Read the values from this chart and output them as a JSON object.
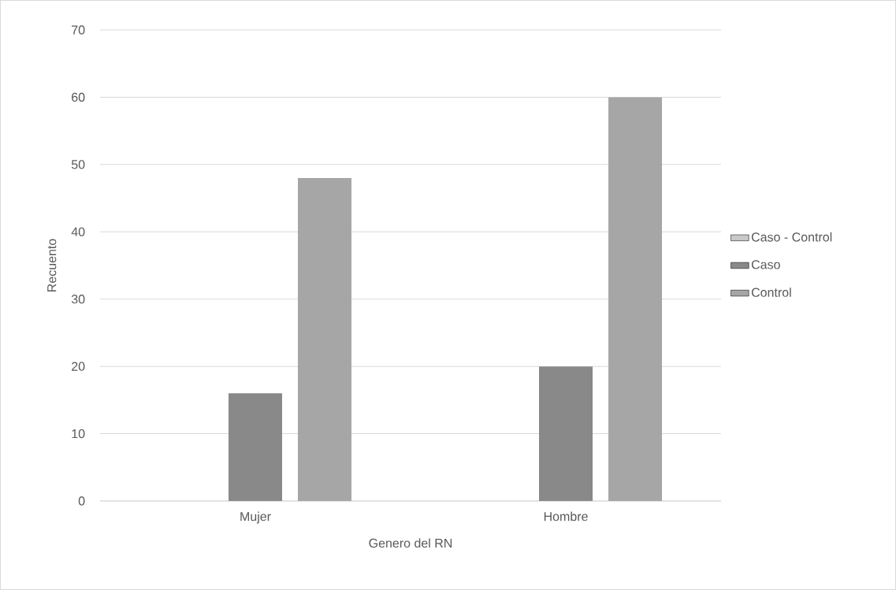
{
  "chart_data": {
    "type": "bar",
    "xlabel": "Genero del RN",
    "ylabel": "Recuento",
    "categories": [
      "Mujer",
      "Hombre"
    ],
    "series": [
      {
        "name": "Caso - Control",
        "color": "#c9c9c9",
        "values": [
          null,
          null
        ]
      },
      {
        "name": "Caso",
        "color": "#898989",
        "values": [
          16,
          20
        ]
      },
      {
        "name": "Control",
        "color": "#a6a6a6",
        "values": [
          48,
          60
        ]
      }
    ],
    "ylim": [
      0,
      70
    ],
    "yticks": [
      0,
      10,
      20,
      30,
      40,
      50,
      60,
      70
    ],
    "grid": "y",
    "legend": "right"
  }
}
